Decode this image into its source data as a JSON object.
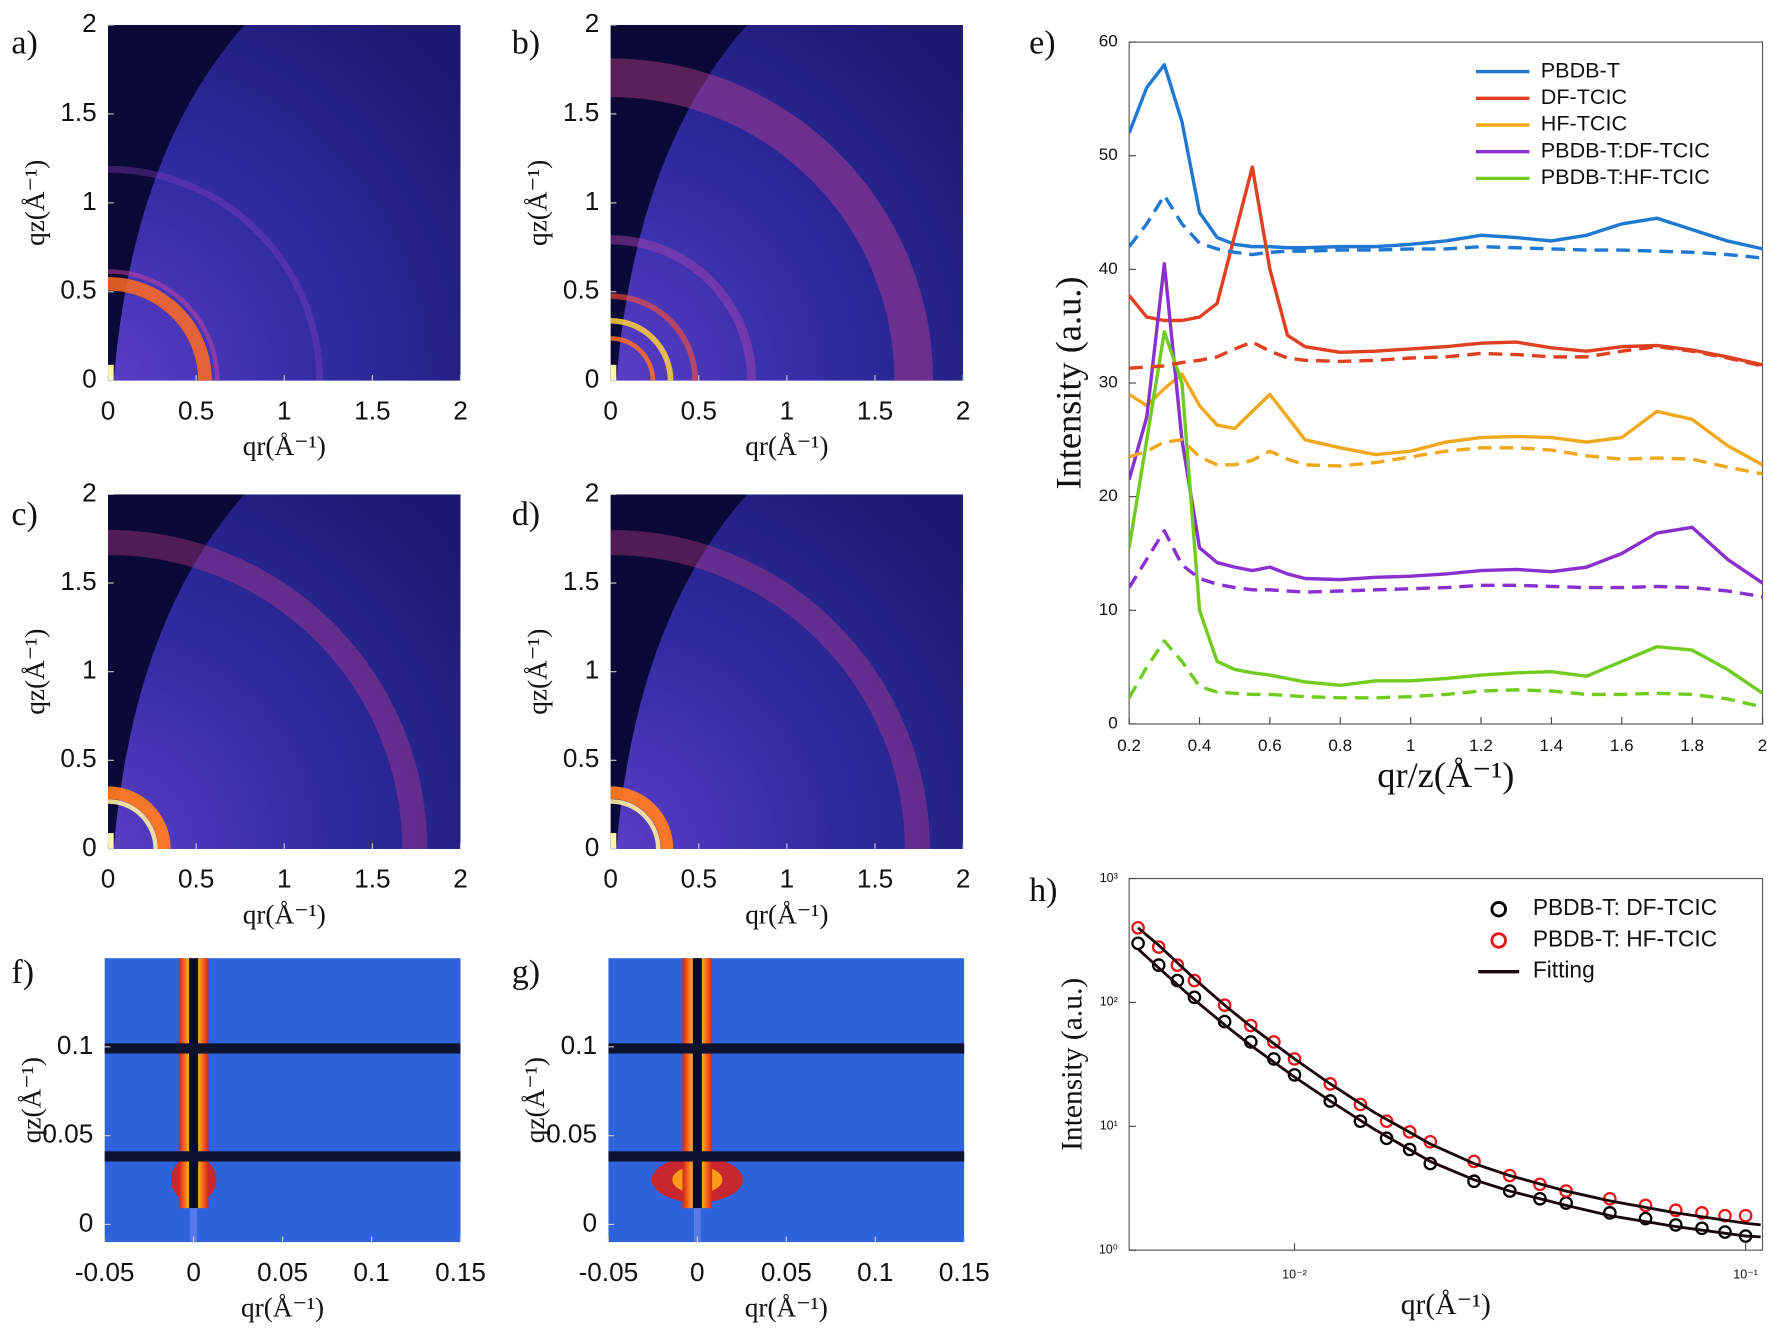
{
  "chart_data": [
    {
      "type": "heatmap",
      "label": "a)",
      "xlabel": "qr(Å⁻¹)",
      "ylabel": "qz(Å⁻¹)",
      "xlim": [
        0,
        2
      ],
      "ylim": [
        0,
        2
      ],
      "xticks": [
        0,
        0.5,
        1,
        1.5,
        2
      ],
      "yticks": [
        0,
        0.5,
        1,
        1.5,
        2
      ]
    },
    {
      "type": "heatmap",
      "label": "b)",
      "xlabel": "qr(Å⁻¹)",
      "ylabel": "qz(Å⁻¹)",
      "xlim": [
        0,
        2
      ],
      "ylim": [
        0,
        2
      ],
      "xticks": [
        0,
        0.5,
        1,
        1.5,
        2
      ],
      "yticks": [
        0,
        0.5,
        1,
        1.5,
        2
      ]
    },
    {
      "type": "heatmap",
      "label": "c)",
      "xlabel": "qr(Å⁻¹)",
      "ylabel": "qz(Å⁻¹)",
      "xlim": [
        0,
        2
      ],
      "ylim": [
        0,
        2
      ],
      "xticks": [
        0,
        0.5,
        1,
        1.5,
        2
      ],
      "yticks": [
        0,
        0.5,
        1,
        1.5,
        2
      ]
    },
    {
      "type": "heatmap",
      "label": "d)",
      "xlabel": "qr(Å⁻¹)",
      "ylabel": "qz(Å⁻¹)",
      "xlim": [
        0,
        2
      ],
      "ylim": [
        0,
        2
      ],
      "xticks": [
        0,
        0.5,
        1,
        1.5,
        2
      ],
      "yticks": [
        0,
        0.5,
        1,
        1.5,
        2
      ]
    },
    {
      "type": "line",
      "label": "e)",
      "xlabel": "qr/z(Å⁻¹)",
      "ylabel": "Intensity (a.u.)",
      "xlim": [
        0.2,
        2
      ],
      "ylim": [
        0,
        60
      ],
      "xticks": [
        0.2,
        0.4,
        0.6,
        0.8,
        1,
        1.2,
        1.4,
        1.6,
        1.8,
        2
      ],
      "yticks": [
        0,
        10,
        20,
        30,
        40,
        50,
        60
      ],
      "legend": "upper right",
      "x": [
        0.2,
        0.25,
        0.3,
        0.35,
        0.4,
        0.45,
        0.5,
        0.55,
        0.6,
        0.65,
        0.7,
        0.8,
        0.9,
        1.0,
        1.1,
        1.2,
        1.3,
        1.4,
        1.5,
        1.6,
        1.7,
        1.8,
        1.9,
        2.0
      ],
      "series": [
        {
          "name": "PBDB-T",
          "color": "#1f78d1",
          "values": [
            52,
            56,
            58,
            53,
            45,
            42.8,
            42.2,
            42,
            42,
            41.9,
            41.9,
            42,
            42,
            42.2,
            42.5,
            43,
            42.8,
            42.5,
            43,
            44,
            44.5,
            43.5,
            42.5,
            41.8
          ]
        },
        {
          "name": "DF-TCIC",
          "color": "#e0401f",
          "values": [
            37.7,
            35.8,
            35.5,
            35.5,
            35.8,
            37,
            43,
            49,
            40,
            34.2,
            33.2,
            32.7,
            32.8,
            33,
            33.2,
            33.5,
            33.6,
            33.1,
            32.8,
            33.2,
            33.3,
            32.9,
            32.3,
            31.6
          ]
        },
        {
          "name": "HF-TCIC",
          "color": "#f0a81c",
          "values": [
            29,
            28,
            29.5,
            30.8,
            28,
            26.3,
            26,
            27.5,
            29,
            27,
            25,
            24.3,
            23.7,
            24,
            24.8,
            25.2,
            25.3,
            25.2,
            24.8,
            25.2,
            27.5,
            26.8,
            24.5,
            22.8
          ]
        },
        {
          "name": "PBDB-T:DF-TCIC",
          "color": "#8a2fd0",
          "values": [
            21.5,
            27,
            40.5,
            25,
            15.5,
            14.2,
            13.8,
            13.5,
            13.8,
            13.2,
            12.8,
            12.7,
            12.9,
            13,
            13.2,
            13.5,
            13.6,
            13.4,
            13.8,
            15,
            16.8,
            17.3,
            14.5,
            12.4
          ]
        },
        {
          "name": "PBDB-T:HF-TCIC",
          "color": "#72cc1f",
          "values": [
            15.5,
            25,
            34.5,
            30,
            10,
            5.5,
            4.8,
            4.5,
            4.3,
            4,
            3.7,
            3.4,
            3.8,
            3.8,
            4,
            4.3,
            4.5,
            4.6,
            4.2,
            5.5,
            6.8,
            6.5,
            4.8,
            2.7
          ]
        },
        {
          "color": "#1f78d1",
          "dash": true,
          "values": [
            42,
            44,
            46.5,
            44,
            42.3,
            41.8,
            41.5,
            41.3,
            41.5,
            41.6,
            41.6,
            41.7,
            41.7,
            41.8,
            41.8,
            42,
            41.9,
            41.8,
            41.7,
            41.7,
            41.6,
            41.5,
            41.3,
            41
          ]
        },
        {
          "color": "#e0401f",
          "dash": true,
          "values": [
            31.3,
            31.4,
            31.5,
            31.8,
            32,
            32.3,
            33,
            33.6,
            32.8,
            32.2,
            32,
            31.9,
            32,
            32.2,
            32.3,
            32.6,
            32.5,
            32.3,
            32.3,
            32.8,
            33.2,
            32.8,
            32.2,
            31.5
          ]
        },
        {
          "color": "#f0a81c",
          "dash": true,
          "values": [
            23.5,
            24,
            24.8,
            25,
            23.5,
            22.8,
            22.8,
            23.2,
            24,
            23.3,
            22.8,
            22.7,
            23,
            23.5,
            24,
            24.3,
            24.3,
            24.1,
            23.6,
            23.3,
            23.4,
            23.3,
            22.6,
            22
          ]
        },
        {
          "color": "#8a2fd0",
          "dash": true,
          "values": [
            12,
            14.5,
            17,
            14,
            12.8,
            12.3,
            12,
            11.8,
            11.8,
            11.7,
            11.6,
            11.7,
            11.8,
            11.9,
            12,
            12.2,
            12.2,
            12.1,
            12,
            12,
            12.1,
            12,
            11.7,
            11.2
          ]
        },
        {
          "color": "#72cc1f",
          "dash": true,
          "values": [
            2.3,
            5,
            7.3,
            5.5,
            3.3,
            2.8,
            2.7,
            2.6,
            2.6,
            2.5,
            2.4,
            2.3,
            2.3,
            2.4,
            2.6,
            2.9,
            3,
            2.9,
            2.6,
            2.6,
            2.7,
            2.6,
            2.2,
            1.5
          ]
        }
      ]
    },
    {
      "type": "heatmap",
      "label": "f)",
      "xlabel": "qr(Å⁻¹)",
      "ylabel": "qz(Å⁻¹)",
      "xlim": [
        -0.05,
        0.15
      ],
      "ylim": [
        -0.01,
        0.15
      ],
      "xticks": [
        -0.05,
        0,
        0.05,
        0.1,
        0.15
      ],
      "yticks": [
        0,
        0.05,
        0.1
      ]
    },
    {
      "type": "heatmap",
      "label": "g)",
      "xlabel": "qr(Å⁻¹)",
      "ylabel": "qz(Å⁻¹)",
      "xlim": [
        -0.05,
        0.15
      ],
      "ylim": [
        -0.01,
        0.15
      ],
      "xticks": [
        -0.05,
        0,
        0.05,
        0.1,
        0.15
      ],
      "yticks": [
        0,
        0.05,
        0.1
      ]
    },
    {
      "type": "scatter",
      "label": "h)",
      "xlabel": "qr(Å⁻¹)",
      "ylabel": "Intensity (a.u.)",
      "xscale": "log",
      "yscale": "log",
      "xlim": [
        0.0043,
        0.109
      ],
      "ylim": [
        1,
        1000
      ],
      "xticks": [
        {
          "value": 0.01,
          "label": "10⁻²"
        },
        {
          "value": 0.1,
          "label": "10⁻¹"
        }
      ],
      "yticks": [
        {
          "value": 1,
          "label": "10⁰"
        },
        {
          "value": 10,
          "label": "10¹"
        },
        {
          "value": 100,
          "label": "10²"
        },
        {
          "value": 1000,
          "label": "10³"
        }
      ],
      "legend": "upper right",
      "series": [
        {
          "name": "PBDB-T: DF-TCIC",
          "color": "#000000",
          "style": "circle",
          "x": [
            0.0045,
            0.005,
            0.0055,
            0.006,
            0.007,
            0.008,
            0.009,
            0.01,
            0.012,
            0.014,
            0.016,
            0.018,
            0.02,
            0.025,
            0.03,
            0.035,
            0.04,
            0.05,
            0.06,
            0.07,
            0.08,
            0.09,
            0.1
          ],
          "values": [
            300,
            200,
            150,
            110,
            70,
            48,
            35,
            26,
            16,
            11,
            8,
            6.5,
            5,
            3.6,
            3,
            2.6,
            2.4,
            2,
            1.8,
            1.6,
            1.5,
            1.4,
            1.3
          ]
        },
        {
          "name": "PBDB-T: HF-TCIC",
          "color": "#e8151b",
          "style": "circle",
          "x": [
            0.0045,
            0.005,
            0.0055,
            0.006,
            0.007,
            0.008,
            0.009,
            0.01,
            0.012,
            0.014,
            0.016,
            0.018,
            0.02,
            0.025,
            0.03,
            0.035,
            0.04,
            0.05,
            0.06,
            0.07,
            0.08,
            0.09,
            0.1
          ],
          "values": [
            400,
            280,
            200,
            150,
            95,
            65,
            48,
            35,
            22,
            15,
            11,
            9,
            7.5,
            5.2,
            4,
            3.4,
            3,
            2.6,
            2.3,
            2.1,
            2,
            1.9,
            1.9
          ]
        },
        {
          "name": "Fitting",
          "color": "#1a0508",
          "style": "line",
          "x": [
            0.0045,
            0.005,
            0.006,
            0.007,
            0.008,
            0.01,
            0.012,
            0.015,
            0.02,
            0.025,
            0.03,
            0.04,
            0.05,
            0.07,
            0.1,
            0.108
          ],
          "values": [
            400,
            290,
            155,
            95,
            64,
            35,
            22,
            13,
            7.2,
            5,
            4,
            3,
            2.5,
            2,
            1.65,
            1.6
          ]
        },
        {
          "color": "#1a0508",
          "style": "line",
          "x": [
            0.0045,
            0.005,
            0.006,
            0.007,
            0.008,
            0.01,
            0.012,
            0.015,
            0.02,
            0.025,
            0.03,
            0.04,
            0.05,
            0.07,
            0.1,
            0.108
          ],
          "values": [
            270,
            190,
            105,
            66,
            45,
            25,
            16,
            9.5,
            5.2,
            3.7,
            3,
            2.3,
            1.9,
            1.55,
            1.3,
            1.28
          ]
        }
      ]
    }
  ]
}
